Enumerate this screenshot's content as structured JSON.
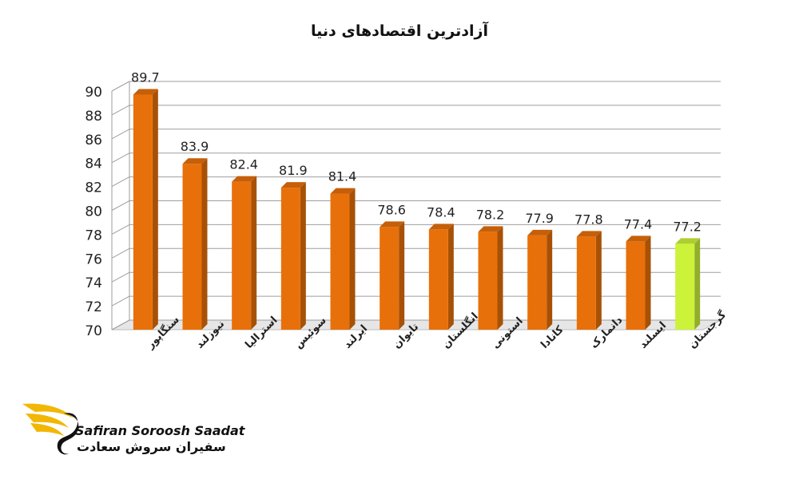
{
  "chart_data": {
    "type": "bar",
    "title": "آزادترین اقتصادهای دنیا",
    "xlabel": "",
    "ylabel": "",
    "categories": [
      "سنگاپور",
      "نیوزلند",
      "استرالیا",
      "سوئیس",
      "ایرلند",
      "تایوان",
      "انگلستان",
      "استونی",
      "کانادا",
      "دانمارک",
      "ایسلند",
      "گرجستان"
    ],
    "values": [
      89.7,
      83.9,
      82.4,
      81.9,
      81.4,
      78.6,
      78.4,
      78.2,
      77.9,
      77.8,
      77.4,
      77.2
    ],
    "data_labels": [
      "89.7",
      "83.9",
      "82.4",
      "81.9",
      "81.4",
      "78.6",
      "78.4",
      "78.2",
      "77.9",
      "77.8",
      "77.4",
      "77.2"
    ],
    "y_ticks": [
      "70",
      "72",
      "74",
      "76",
      "78",
      "80",
      "82",
      "84",
      "86",
      "88",
      "90"
    ],
    "ylim": [
      70,
      90
    ],
    "grid": true,
    "bar_colors": [
      "#e8700a",
      "#e8700a",
      "#e8700a",
      "#e8700a",
      "#e8700a",
      "#e8700a",
      "#e8700a",
      "#e8700a",
      "#e8700a",
      "#e8700a",
      "#e8700a",
      "#ccf23a"
    ],
    "highlight_color": "#ccf23a"
  },
  "watermark": {
    "icon": "swan-logo-icon",
    "name_en": "Safiran Soroosh Saadat",
    "name_fa": "سفیران سروش سعادت",
    "accent_color": "#f2b705"
  }
}
